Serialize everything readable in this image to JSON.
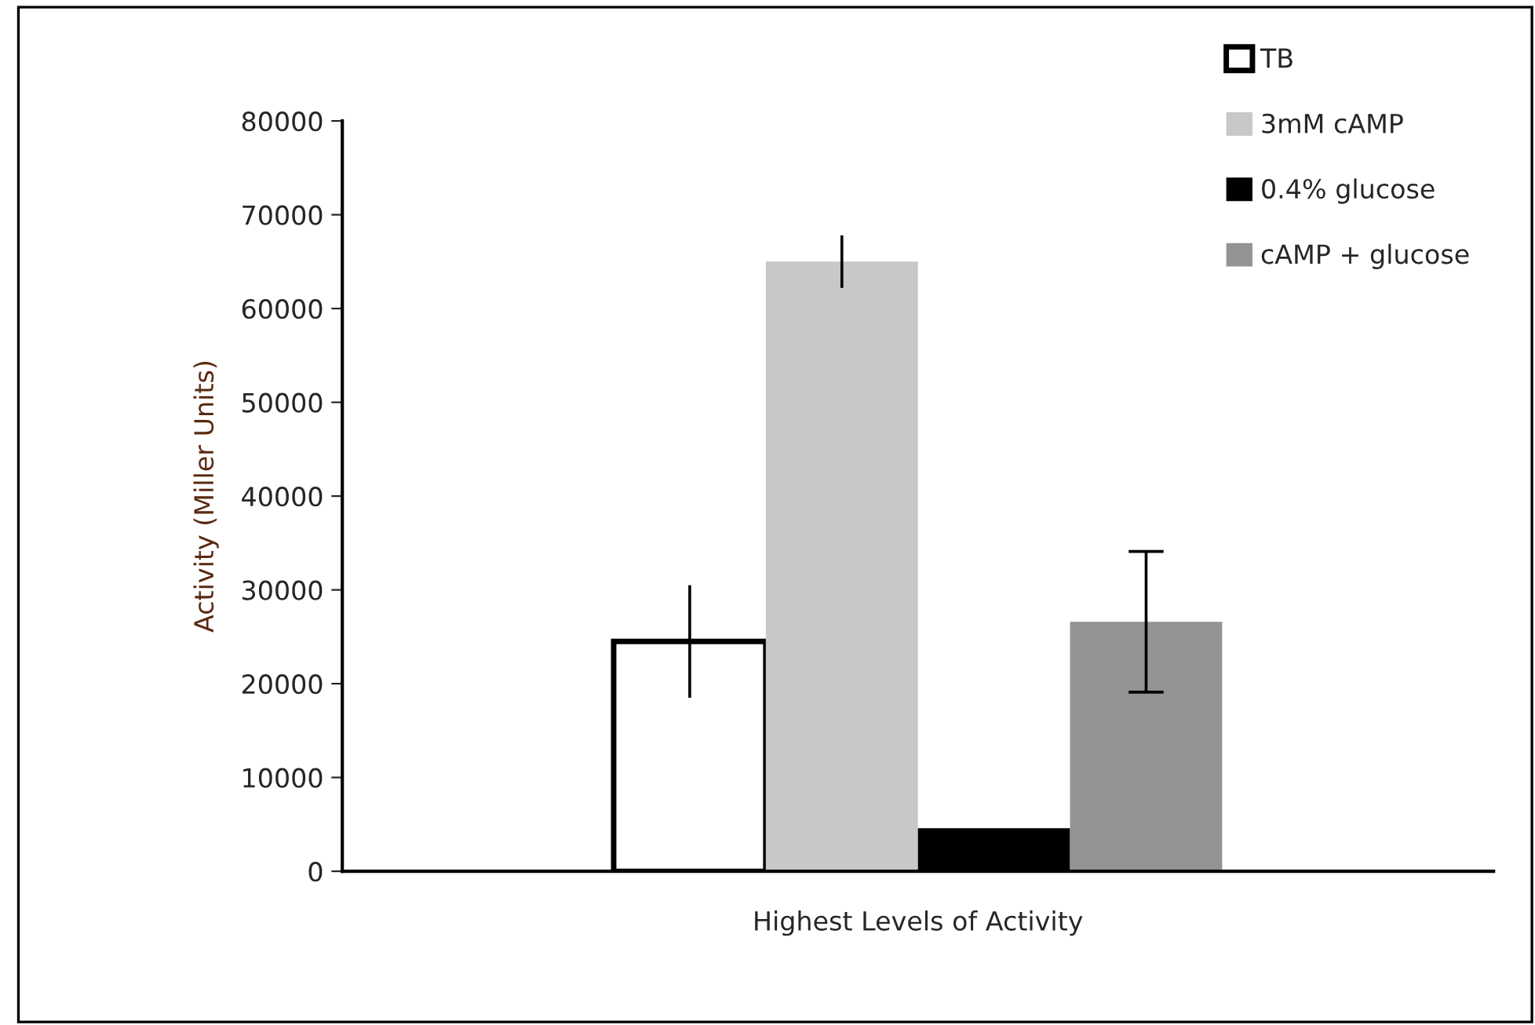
{
  "chart_data": {
    "type": "bar",
    "ylabel": "Activity (Miller Units)",
    "categories": [
      "Highest Levels of Activity"
    ],
    "ylim": [
      0,
      80000
    ],
    "yticks": [
      0,
      10000,
      20000,
      30000,
      40000,
      50000,
      60000,
      70000,
      80000
    ],
    "grid": false,
    "legend": "top right",
    "series": [
      {
        "name": "TB",
        "color": "#ffffff",
        "values": [
          24500
        ],
        "errors": [
          6000
        ]
      },
      {
        "name": "3mM cAMP",
        "color": "#c8c8c8",
        "values": [
          65000
        ],
        "errors": [
          2800
        ]
      },
      {
        "name": "0.4% glucose",
        "color": "#000000",
        "values": [
          4600
        ],
        "errors": [
          null
        ]
      },
      {
        "name": "cAMP + glucose",
        "color": "#939393",
        "values": [
          26600
        ],
        "errors": [
          7500
        ]
      }
    ]
  }
}
